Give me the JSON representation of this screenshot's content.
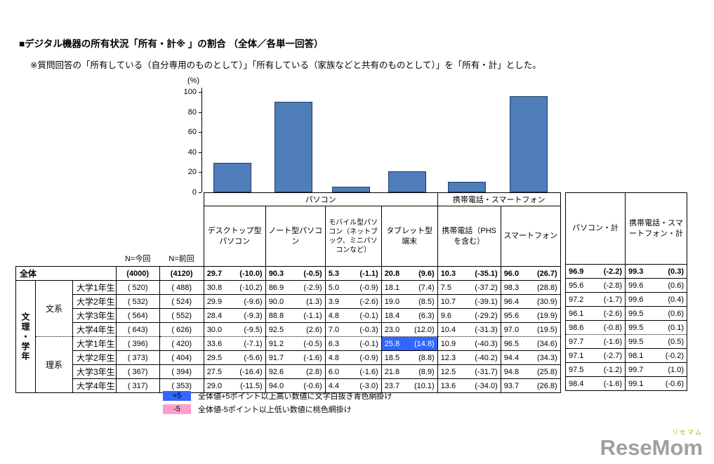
{
  "title": "■デジタル機器の所有状況「所有・計※ 」の割合 （全体／各単一回答）",
  "subtitle": "※質問回答の「所有している（自分専用のものとして）」「所有している（家族などと共有のものとして）」を「所有・計」とした。",
  "chart_data": {
    "type": "bar",
    "title": "",
    "ylabel": "(%)",
    "ylim": [
      0,
      100
    ],
    "yticks": [
      100,
      80,
      60,
      40,
      20,
      0
    ],
    "grid": false,
    "legend_position": "none",
    "bar_color": "#4f7dba",
    "categories": [
      "デスクトップ型パソコン",
      "ノート型パソコン",
      "モバイル型パソコン（ネットブック、ミニパソコンなど）",
      "タブレット型端末",
      "携帯電話（PHSを含む）",
      "スマートフォン"
    ],
    "values": [
      29.7,
      90.3,
      5.3,
      20.8,
      10.3,
      96.0
    ]
  },
  "table": {
    "n_headers": [
      "N=今回",
      "N=前回"
    ],
    "group_headers": [
      {
        "label": "パソコン",
        "span": 4
      },
      {
        "label": "携帯電話・スマートフォン",
        "span": 2
      }
    ],
    "column_headers": [
      "デスクトップ型パソコン",
      "ノート型パソコン",
      "モバイル型パソコン（ネットブック、ミニパソコンなど）",
      "タブレット型端末",
      "携帯電話（PHSを含む）",
      "スマートフォン"
    ],
    "summary_headers": [
      "パソコン・計",
      "携帯電話・スマートフォン・計"
    ],
    "row_group_label": "文理・学年",
    "overall_row": {
      "label": "全体",
      "n_now": "(4000)",
      "n_prev": "(4120)",
      "cells": [
        {
          "v": "29.7",
          "d": "(-10.0)"
        },
        {
          "v": "90.3",
          "d": "(-0.5)"
        },
        {
          "v": "5.3",
          "d": "(-1.1)"
        },
        {
          "v": "20.8",
          "d": "(9.6)"
        },
        {
          "v": "10.3",
          "d": "(-35.1)"
        },
        {
          "v": "96.0",
          "d": "(26.7)"
        }
      ],
      "summary": [
        {
          "v": "96.9",
          "d": "(-2.2)"
        },
        {
          "v": "99.3",
          "d": "(0.3)"
        }
      ]
    },
    "groups": [
      {
        "label": "文系",
        "rows": [
          {
            "label": "大学1年生",
            "n_now": "( 520)",
            "n_prev": "( 488)",
            "cells": [
              {
                "v": "30.8",
                "d": "(-10.2)"
              },
              {
                "v": "86.9",
                "d": "(-2.9)"
              },
              {
                "v": "5.0",
                "d": "(-0.9)"
              },
              {
                "v": "18.1",
                "d": "(7.4)"
              },
              {
                "v": "7.5",
                "d": "(-37.2)"
              },
              {
                "v": "98.3",
                "d": "(28.8)"
              }
            ],
            "summary": [
              {
                "v": "95.6",
                "d": "(-2.8)"
              },
              {
                "v": "99.6",
                "d": "(0.6)"
              }
            ]
          },
          {
            "label": "大学2年生",
            "n_now": "( 532)",
            "n_prev": "( 524)",
            "cells": [
              {
                "v": "29.9",
                "d": "(-9.6)"
              },
              {
                "v": "90.0",
                "d": "(1.3)"
              },
              {
                "v": "3.9",
                "d": "(-2.6)"
              },
              {
                "v": "19.0",
                "d": "(8.5)"
              },
              {
                "v": "10.7",
                "d": "(-39.1)"
              },
              {
                "v": "96.4",
                "d": "(30.9)"
              }
            ],
            "summary": [
              {
                "v": "97.2",
                "d": "(-1.7)"
              },
              {
                "v": "99.6",
                "d": "(0.4)"
              }
            ]
          },
          {
            "label": "大学3年生",
            "n_now": "( 564)",
            "n_prev": "( 552)",
            "cells": [
              {
                "v": "28.4",
                "d": "(-9.3)"
              },
              {
                "v": "88.8",
                "d": "(-1.1)"
              },
              {
                "v": "4.8",
                "d": "(-0.1)"
              },
              {
                "v": "18.4",
                "d": "(6.3)"
              },
              {
                "v": "9.6",
                "d": "(-29.2)"
              },
              {
                "v": "95.6",
                "d": "(19.9)"
              }
            ],
            "summary": [
              {
                "v": "96.1",
                "d": "(-2.6)"
              },
              {
                "v": "99.5",
                "d": "(0.6)"
              }
            ]
          },
          {
            "label": "大学4年生",
            "n_now": "( 643)",
            "n_prev": "( 626)",
            "cells": [
              {
                "v": "30.0",
                "d": "(-9.5)"
              },
              {
                "v": "92.5",
                "d": "(2.6)"
              },
              {
                "v": "7.0",
                "d": "(-0.3)"
              },
              {
                "v": "23.0",
                "d": "(12.0)"
              },
              {
                "v": "10.4",
                "d": "(-31.3)"
              },
              {
                "v": "97.0",
                "d": "(19.5)"
              }
            ],
            "summary": [
              {
                "v": "98.6",
                "d": "(-0.8)"
              },
              {
                "v": "99.5",
                "d": "(0.1)"
              }
            ]
          }
        ]
      },
      {
        "label": "理系",
        "rows": [
          {
            "label": "大学1年生",
            "n_now": "( 396)",
            "n_prev": "( 420)",
            "cells": [
              {
                "v": "33.6",
                "d": "(-7.1)"
              },
              {
                "v": "91.2",
                "d": "(-0.5)"
              },
              {
                "v": "6.3",
                "d": "(-0.1)"
              },
              {
                "v": "25.8",
                "d": "(14.8)",
                "hl": "blue"
              },
              {
                "v": "10.9",
                "d": "(-40.3)"
              },
              {
                "v": "96.5",
                "d": "(34.6)"
              }
            ],
            "summary": [
              {
                "v": "97.7",
                "d": "(-1.6)"
              },
              {
                "v": "99.5",
                "d": "(0.5)"
              }
            ]
          },
          {
            "label": "大学2年生",
            "n_now": "( 373)",
            "n_prev": "( 404)",
            "cells": [
              {
                "v": "29.5",
                "d": "(-5.6)"
              },
              {
                "v": "91.7",
                "d": "(-1.6)"
              },
              {
                "v": "4.8",
                "d": "(-0.9)"
              },
              {
                "v": "18.5",
                "d": "(8.8)"
              },
              {
                "v": "12.3",
                "d": "(-40.2)"
              },
              {
                "v": "94.4",
                "d": "(34.3)"
              }
            ],
            "summary": [
              {
                "v": "97.1",
                "d": "(-2.7)"
              },
              {
                "v": "98.1",
                "d": "(-0.2)"
              }
            ]
          },
          {
            "label": "大学3年生",
            "n_now": "( 367)",
            "n_prev": "( 394)",
            "cells": [
              {
                "v": "27.5",
                "d": "(-16.4)"
              },
              {
                "v": "92.6",
                "d": "(2.8)"
              },
              {
                "v": "6.0",
                "d": "(-1.6)"
              },
              {
                "v": "21.8",
                "d": "(8.9)"
              },
              {
                "v": "12.5",
                "d": "(-31.7)"
              },
              {
                "v": "94.8",
                "d": "(25.8)"
              }
            ],
            "summary": [
              {
                "v": "97.5",
                "d": "(-1.2)"
              },
              {
                "v": "99.7",
                "d": "(1.0)"
              }
            ]
          },
          {
            "label": "大学4年生",
            "n_now": "( 317)",
            "n_prev": "( 353)",
            "cells": [
              {
                "v": "29.0",
                "d": "(-11.5)"
              },
              {
                "v": "94.0",
                "d": "(-0.6)"
              },
              {
                "v": "4.4",
                "d": "(-3.0)"
              },
              {
                "v": "23.7",
                "d": "(10.1)"
              },
              {
                "v": "13.6",
                "d": "(-34.0)"
              },
              {
                "v": "93.7",
                "d": "(26.8)"
              }
            ],
            "summary": [
              {
                "v": "98.4",
                "d": "(-1.6)"
              },
              {
                "v": "99.1",
                "d": "(-0.6)"
              }
            ]
          }
        ]
      }
    ]
  },
  "legend": {
    "plus": {
      "key": "+5",
      "label": "全体値+5ポイント以上高い数値に文字白抜き青色網掛け",
      "color": "#3366ff"
    },
    "minus": {
      "key": "-5",
      "label": "全体値-5ポイント以上低い数値に桃色網掛け",
      "color": "#ff9ecb"
    }
  },
  "logo": {
    "text": "ReseMom",
    "kana": "リセマム",
    "accent_color": "#8bc320",
    "text_color": "#a0a0a0"
  }
}
